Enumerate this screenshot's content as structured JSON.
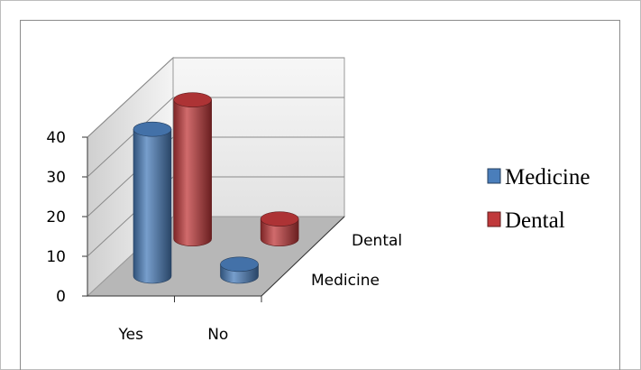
{
  "chart_data": {
    "type": "bar3d",
    "categories": [
      "Yes",
      "No"
    ],
    "series": [
      {
        "name": "Medicine",
        "color": "#4a7ebb",
        "values": [
          37,
          3
        ]
      },
      {
        "name": "Dental",
        "color": "#c0393b",
        "values": [
          35,
          5
        ]
      }
    ],
    "ylim": [
      0,
      40
    ],
    "yticks": [
      0,
      10,
      20,
      30,
      40
    ],
    "grid": true,
    "legend": "right"
  }
}
